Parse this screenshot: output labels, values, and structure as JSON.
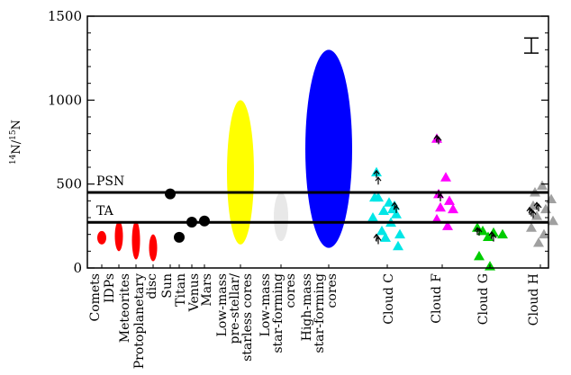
{
  "chart_data": {
    "type": "scatter",
    "title": "",
    "xlabel": "",
    "ylabel": "14N/15N",
    "ylabel_parts": {
      "sup1": "14",
      "base1": "N/",
      "sup2": "15",
      "base2": "N"
    },
    "ylim": [
      0,
      1500
    ],
    "y_ticks": [
      0,
      500,
      1000,
      1500
    ],
    "reference_lines": [
      {
        "label": "PSN",
        "y": 450
      },
      {
        "label": "TA",
        "y": 272
      }
    ],
    "error_bar_sample": {
      "low": 1280,
      "high": 1370
    },
    "categories": [
      "Comets",
      "IDPs",
      "Meteorites",
      "Protoplanetary disc",
      "Sun",
      "Titan",
      "Venus",
      "Mars",
      "Low-mass pre-stellar/ starless cores",
      "Low-mass star-forming cores",
      "High-mass star-forming cores",
      "Cloud C",
      "Cloud F",
      "Cloud G",
      "Cloud H"
    ],
    "category_label_lines": [
      [
        "Comets"
      ],
      [
        "IDPs"
      ],
      [
        "Meteorites"
      ],
      [
        "Protoplanetary",
        "disc"
      ],
      [
        "Sun"
      ],
      [
        "Titan"
      ],
      [
        "Venus"
      ],
      [
        "Mars"
      ],
      [
        "Low-mass",
        "pre-stellar/",
        "starless cores"
      ],
      [
        "Low-mass",
        "star-forming",
        "cores"
      ],
      [
        "High-mass",
        "star-forming",
        "cores"
      ],
      [
        "Cloud C"
      ],
      [
        "Cloud F"
      ],
      [
        "Cloud G"
      ],
      [
        "Cloud H"
      ]
    ],
    "ranges": [
      {
        "category": "Comets",
        "low": 140,
        "high": 220,
        "color": "#ff0000"
      },
      {
        "category": "IDPs",
        "low": 100,
        "high": 280,
        "color": "#ff0000"
      },
      {
        "category": "Meteorites",
        "low": 50,
        "high": 280,
        "color": "#ff0000"
      },
      {
        "category": "Protoplanetary disc",
        "low": 40,
        "high": 200,
        "color": "#ff0000"
      },
      {
        "category": "Low-mass pre-stellar/ starless cores",
        "low": 140,
        "high": 1000,
        "color": "#ffff00"
      },
      {
        "category": "Low-mass star-forming cores",
        "low": 160,
        "high": 450,
        "color": "#e8e8e8"
      },
      {
        "category": "High-mass star-forming cores",
        "low": 120,
        "high": 1300,
        "color": "#0000ff"
      }
    ],
    "points": [
      {
        "category": "Sun",
        "value": 441,
        "color": "#000000"
      },
      {
        "category": "Titan",
        "value": 183,
        "color": "#000000"
      },
      {
        "category": "Venus",
        "value": 273,
        "color": "#000000"
      },
      {
        "category": "Mars",
        "value": 280,
        "color": "#000000"
      }
    ],
    "clouds": [
      {
        "name": "Cloud C",
        "color": "#00e6e6",
        "values": [
          570,
          420,
          390,
          370,
          340,
          320,
          300,
          270,
          220,
          200,
          180,
          130,
          420,
          350
        ],
        "lower_limits": [
          580,
          540,
          390,
          370,
          200,
          185
        ]
      },
      {
        "name": "Cloud F",
        "color": "#ff00ff",
        "values": [
          770,
          540,
          440,
          400,
          360,
          350,
          290,
          250
        ],
        "lower_limits": [
          790,
          780,
          460,
          440
        ]
      },
      {
        "name": "Cloud G",
        "color": "#00cc00",
        "values": [
          240,
          220,
          210,
          200,
          185,
          70,
          10
        ],
        "lower_limits": [
          240,
          235,
          215,
          200
        ]
      },
      {
        "name": "Cloud H",
        "color": "#a0a0a0",
        "values": [
          490,
          450,
          410,
          370,
          350,
          310,
          280,
          240,
          200,
          150
        ],
        "lower_limits": [
          360,
          350,
          340,
          390,
          380
        ]
      }
    ]
  }
}
